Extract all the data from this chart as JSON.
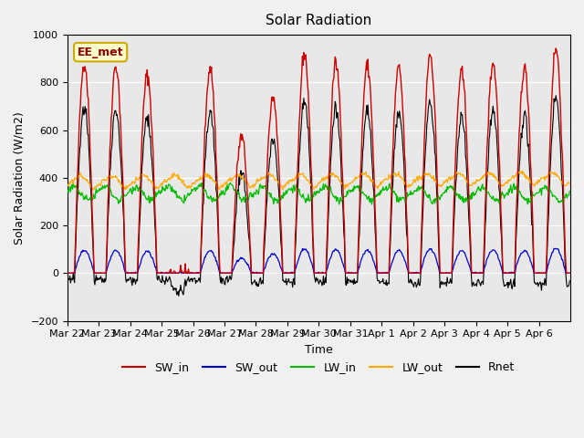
{
  "title": "Solar Radiation",
  "xlabel": "Time",
  "ylabel": "Solar Radiation (W/m2)",
  "ylim": [
    -200,
    1000
  ],
  "yticks": [
    -200,
    0,
    200,
    400,
    600,
    800,
    1000
  ],
  "plot_bg_color": "#e8e8e8",
  "fig_bg_color": "#f0f0f0",
  "station_label": "EE_met",
  "x_tick_labels": [
    "Mar 22",
    "Mar 23",
    "Mar 24",
    "Mar 25",
    "Mar 26",
    "Mar 27",
    "Mar 28",
    "Mar 29",
    "Mar 30",
    "Mar 31",
    "Apr 1",
    "Apr 2",
    "Apr 3",
    "Apr 4",
    "Apr 5",
    "Apr 6"
  ],
  "sw_in_color": "#cc0000",
  "sw_out_color": "#0000cc",
  "lw_in_color": "#00bb00",
  "lw_out_color": "#ffaa00",
  "rnet_color": "#000000",
  "n_days": 16,
  "dt_hours": 0.5,
  "sw_in_peaks": [
    880,
    870,
    830,
    5,
    860,
    570,
    740,
    920,
    880,
    870,
    860,
    920,
    840,
    880,
    860,
    940
  ]
}
